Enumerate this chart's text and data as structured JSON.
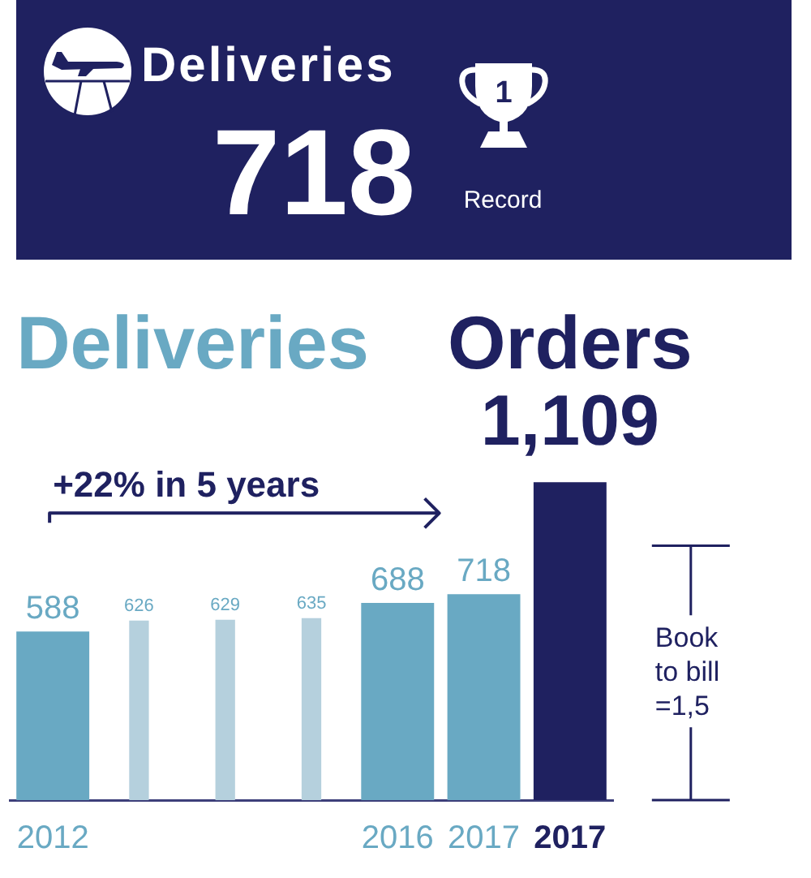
{
  "chart_data": [
    {
      "type": "other",
      "title": "Deliveries",
      "annotations": [
        "718",
        "1",
        "Record"
      ]
    },
    {
      "type": "bar",
      "categories": [
        "2012",
        null,
        null,
        null,
        "2016",
        "2017",
        "2017"
      ],
      "series": [
        {
          "name": "Deliveries",
          "color": "#69a9c3",
          "colors": [
            "#69a9c3",
            "#b5d0dd",
            "#b5d0dd",
            "#b5d0dd",
            "#69a9c3",
            "#69a9c3",
            null
          ],
          "values": [
            588,
            626,
            629,
            635,
            688,
            718,
            null
          ],
          "value_labels": [
            "588",
            "626",
            "629",
            "635",
            "688",
            "718",
            null
          ]
        },
        {
          "name": "Orders",
          "color": "#1f2160",
          "values": [
            null,
            null,
            null,
            null,
            null,
            null,
            1109
          ],
          "value_labels": [
            null,
            null,
            null,
            null,
            null,
            null,
            "1,109"
          ]
        }
      ],
      "tick_labels": "x",
      "grid": false,
      "legend": false,
      "annotations": [
        "+22% in 5 years",
        "Book\nto bill\n=1,5"
      ]
    }
  ]
}
